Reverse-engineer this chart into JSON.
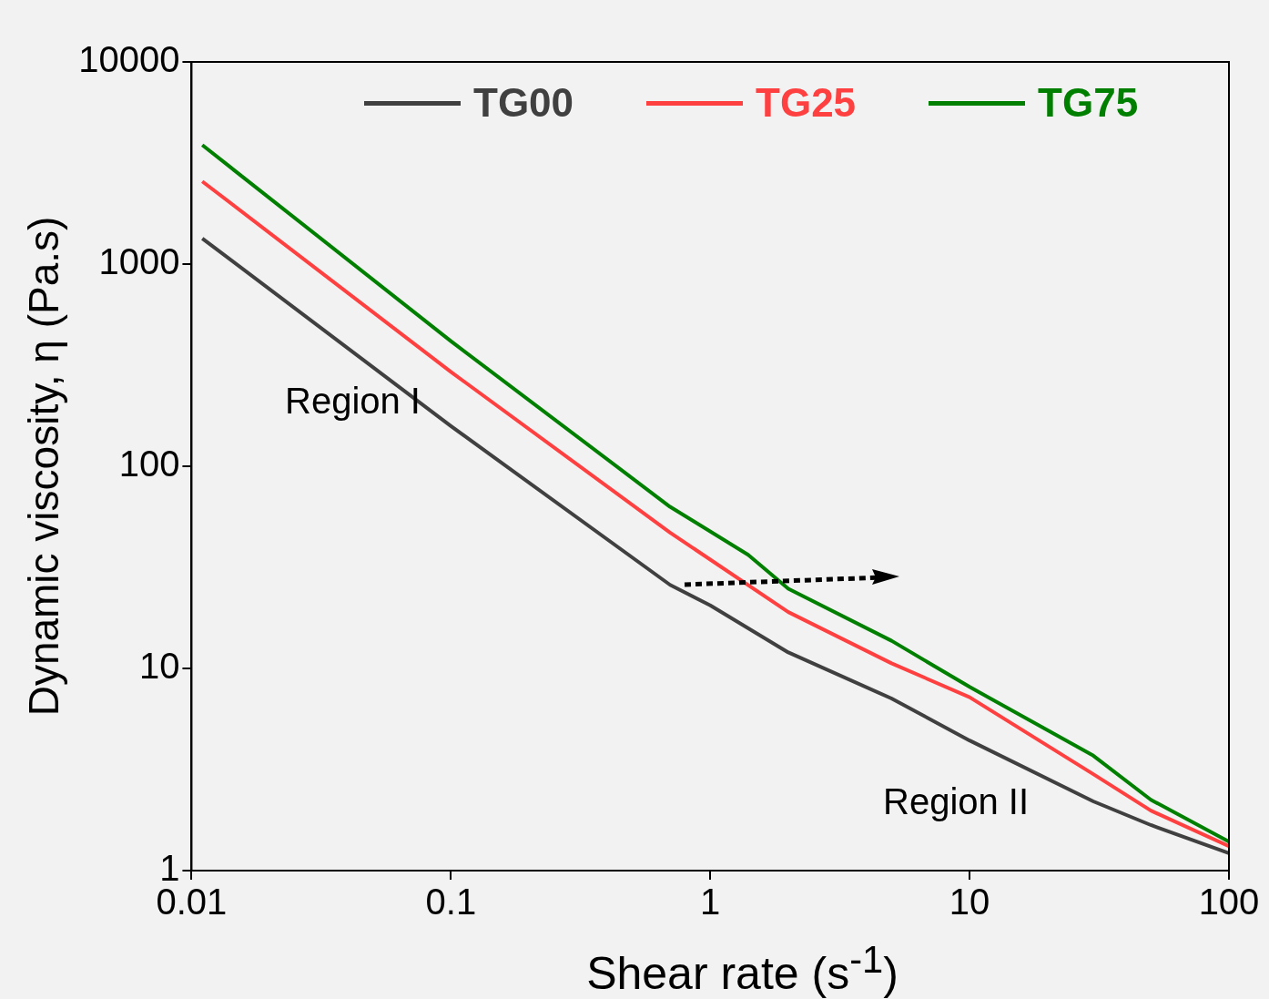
{
  "chart_data": {
    "type": "line",
    "xlabel": "Shear rate (s$^{-1}$)",
    "ylabel": "Dynamic viscosity, η (Pa.s)",
    "log": "xy",
    "xlim": [
      0.01,
      100
    ],
    "ylim": [
      1,
      10000
    ],
    "xticks": [
      0.01,
      0.1,
      1,
      10,
      100
    ],
    "yticks": [
      1,
      10,
      100,
      1000,
      10000
    ],
    "grid": false,
    "legend": "top",
    "line_style": "solid",
    "marker": "none",
    "annotations": [
      "Region I",
      "Region II"
    ],
    "series": [
      {
        "name": "TG00",
        "color": "#404040",
        "x": [
          0.011,
          0.1,
          0.7,
          1,
          2,
          5,
          10,
          30,
          50,
          100
        ],
        "values": [
          1340,
          158,
          25.9,
          20.5,
          12,
          7.1,
          4.4,
          2.2,
          1.68,
          1.22
        ]
      },
      {
        "name": "TG25",
        "color": "#ff4040",
        "x": [
          0.011,
          0.1,
          0.7,
          2,
          5,
          10,
          30,
          50,
          100
        ],
        "values": [
          2564,
          293,
          47,
          19,
          10.6,
          7.2,
          3.0,
          1.98,
          1.32
        ]
      },
      {
        "name": "TG75",
        "color": "#007f00",
        "x": [
          0.011,
          0.1,
          0.7,
          1.4,
          2,
          5,
          10,
          30,
          50,
          100
        ],
        "values": [
          3880,
          416,
          63,
          36.5,
          24.8,
          13.7,
          8.1,
          3.7,
          2.24,
          1.39
        ]
      }
    ]
  }
}
